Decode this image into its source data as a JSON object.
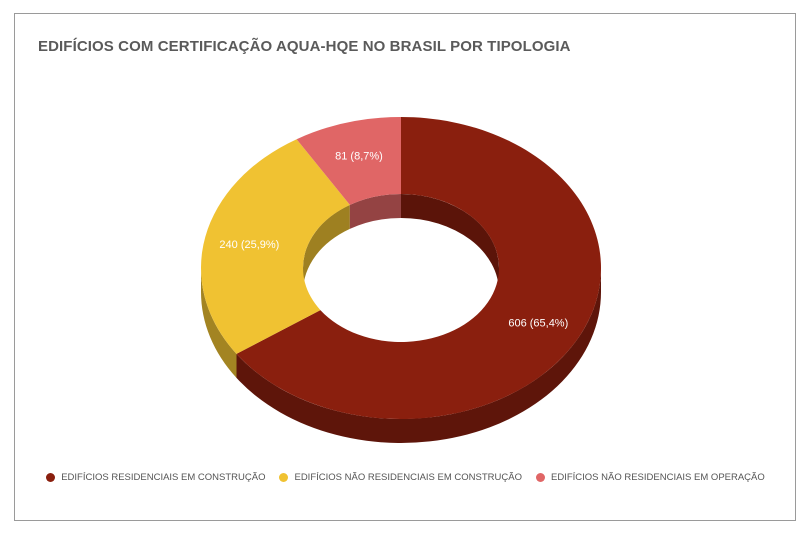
{
  "chart_data": {
    "type": "pie",
    "variant": "3d-donut",
    "title": "EDIFÍCIOS COM CERTIFICAÇÃO AQUA-HQE NO BRASIL POR TIPOLOGIA",
    "slices": [
      {
        "name": "EDIFÍCIOS RESIDENCIAIS EM CONSTRUÇÃO",
        "value": 606,
        "label": "606 (65,4%)",
        "color": "#8a1f0e"
      },
      {
        "name": "EDIFÍCIOS NÃO RESIDENCIAIS EM CONSTRUÇÃO",
        "value": 240,
        "label": "240 (25,9%)",
        "color": "#f0c232"
      },
      {
        "name": "EDIFÍCIOS NÃO RESIDENCIAIS EM OPERAÇÃO",
        "value": 81,
        "label": "81 (8,7%)",
        "color": "#e06666"
      }
    ],
    "legend_position": "bottom"
  }
}
